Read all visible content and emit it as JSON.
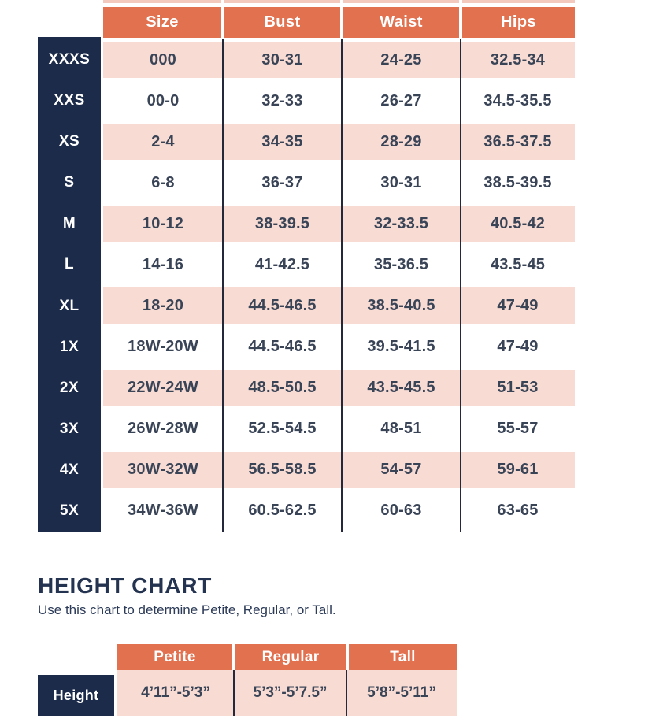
{
  "size_chart": {
    "columns": [
      "Size",
      "Bust",
      "Waist",
      "Hips"
    ],
    "rows": [
      {
        "label": "XXXS",
        "size": "000",
        "bust": "30-31",
        "waist": "24-25",
        "hips": "32.5-34"
      },
      {
        "label": "XXS",
        "size": "00-0",
        "bust": "32-33",
        "waist": "26-27",
        "hips": "34.5-35.5"
      },
      {
        "label": "XS",
        "size": "2-4",
        "bust": "34-35",
        "waist": "28-29",
        "hips": "36.5-37.5"
      },
      {
        "label": "S",
        "size": "6-8",
        "bust": "36-37",
        "waist": "30-31",
        "hips": "38.5-39.5"
      },
      {
        "label": "M",
        "size": "10-12",
        "bust": "38-39.5",
        "waist": "32-33.5",
        "hips": "40.5-42"
      },
      {
        "label": "L",
        "size": "14-16",
        "bust": "41-42.5",
        "waist": "35-36.5",
        "hips": "43.5-45"
      },
      {
        "label": "XL",
        "size": "18-20",
        "bust": "44.5-46.5",
        "waist": "38.5-40.5",
        "hips": "47-49"
      },
      {
        "label": "1X",
        "size": "18W-20W",
        "bust": "44.5-46.5",
        "waist": "39.5-41.5",
        "hips": "47-49"
      },
      {
        "label": "2X",
        "size": "22W-24W",
        "bust": "48.5-50.5",
        "waist": "43.5-45.5",
        "hips": "51-53"
      },
      {
        "label": "3X",
        "size": "26W-28W",
        "bust": "52.5-54.5",
        "waist": "48-51",
        "hips": "55-57"
      },
      {
        "label": "4X",
        "size": "30W-32W",
        "bust": "56.5-58.5",
        "waist": "54-57",
        "hips": "59-61"
      },
      {
        "label": "5X",
        "size": "34W-36W",
        "bust": "60.5-62.5",
        "waist": "60-63",
        "hips": "63-65"
      }
    ]
  },
  "height_chart": {
    "title": "HEIGHT CHART",
    "subtitle": "Use this chart to determine Petite, Regular, or Tall.",
    "columns": [
      "Petite",
      "Regular",
      "Tall"
    ],
    "row_label": "Height",
    "values": [
      "4’11”-5’3”",
      "5’3”-5’7.5”",
      "5’8”-5’11”"
    ]
  },
  "colors": {
    "coral": "#e2714f",
    "navy": "#1c2b4a",
    "pink": "#f8dcd4",
    "text_dark": "#3a4457",
    "divider": "#23283a"
  }
}
